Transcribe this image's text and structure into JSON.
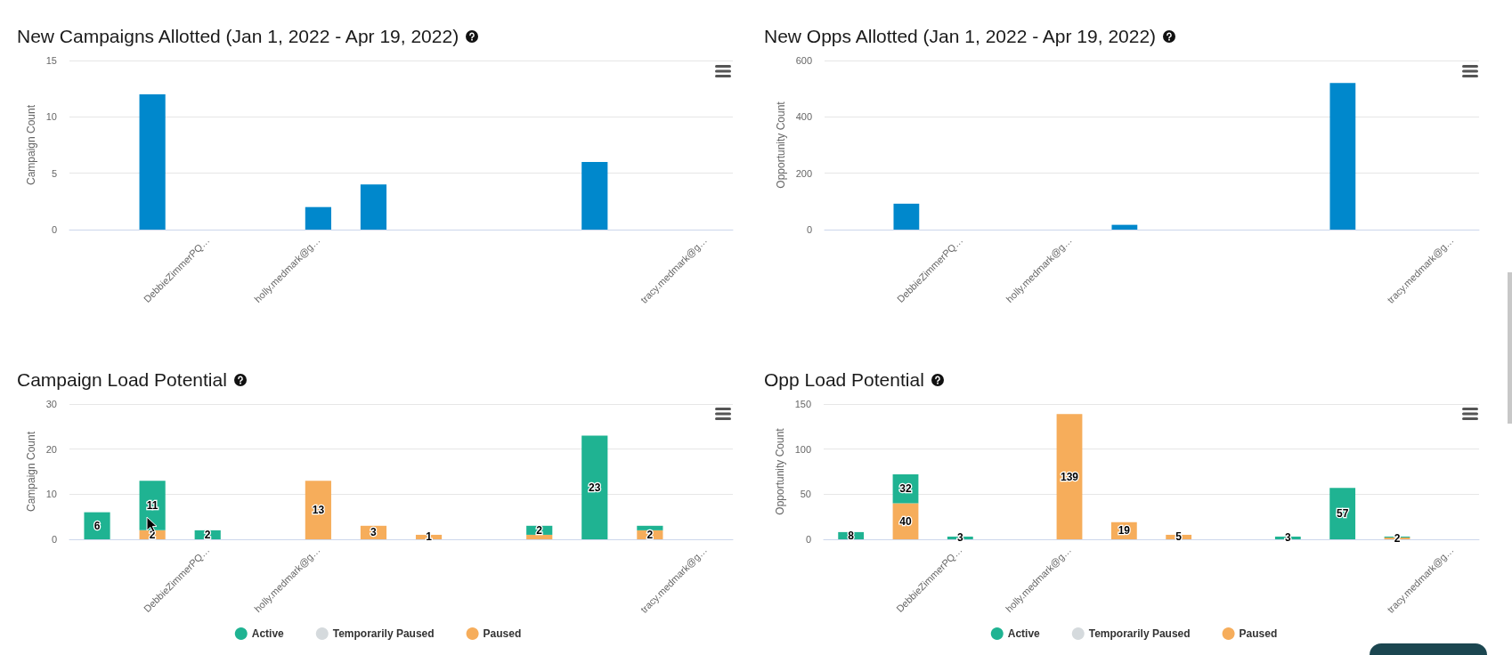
{
  "chart_data": [
    {
      "type": "bar",
      "title": "New Campaigns Allotted (Jan 1, 2022 - Apr 19, 2022)",
      "ylabel": "Campaign Count",
      "categories": [
        null,
        null,
        "DebbieZimmerPQ…",
        null,
        "holly.medmark@g…",
        null,
        null,
        null,
        null,
        null,
        null,
        "tracy.medmark@g…"
      ],
      "values": [
        0,
        12,
        0,
        0,
        2,
        4,
        0,
        0,
        0,
        6,
        0,
        0
      ],
      "color": "#0088cc",
      "ylim": [
        0,
        15
      ],
      "yticks": [
        0,
        5,
        10,
        15
      ],
      "grid": "y"
    },
    {
      "type": "bar",
      "title": "New Opps Allotted (Jan 1, 2022 - Apr 19, 2022)",
      "ylabel": "Opportunity Count",
      "categories": [
        null,
        null,
        "DebbieZimmerPQ…",
        null,
        "holly.medmark@g…",
        null,
        null,
        null,
        null,
        null,
        null,
        "tracy.medmark@g…"
      ],
      "values": [
        0,
        92,
        0,
        0,
        0,
        17,
        0,
        0,
        0,
        520,
        0,
        0
      ],
      "color": "#0088cc",
      "ylim": [
        0,
        600
      ],
      "yticks": [
        0,
        200,
        400,
        600
      ],
      "grid": "y"
    },
    {
      "type": "bar",
      "title": "Campaign Load Potential",
      "ylabel": "Campaign Count",
      "categories": [
        null,
        null,
        "DebbieZimmerPQ…",
        null,
        "holly.medmark@g…",
        null,
        null,
        null,
        null,
        null,
        null,
        "tracy.medmark@g…"
      ],
      "stacked": true,
      "series": [
        {
          "name": "Paused",
          "color": "#f6ad5b",
          "values": [
            0,
            2,
            0,
            0,
            13,
            3,
            1,
            0,
            1,
            0,
            2,
            0
          ],
          "value_labels": [
            null,
            "2",
            null,
            null,
            "13",
            "3",
            "1",
            null,
            null,
            null,
            "2",
            null
          ]
        },
        {
          "name": "Temporarily Paused",
          "color": "#d5dadd",
          "values": [
            0,
            0,
            0,
            0,
            0,
            0,
            0,
            0,
            0,
            0,
            0,
            0
          ]
        },
        {
          "name": "Active",
          "color": "#1fb392",
          "values": [
            6,
            11,
            2,
            0,
            0,
            0,
            0,
            0,
            2,
            23,
            1,
            0
          ],
          "value_labels": [
            "6",
            "11",
            "2",
            null,
            null,
            null,
            null,
            null,
            "2",
            "23",
            null,
            null
          ]
        }
      ],
      "ylim": [
        0,
        30
      ],
      "yticks": [
        0,
        10,
        20,
        30
      ],
      "grid": "y",
      "legend": "bottom"
    },
    {
      "type": "bar",
      "title": "Opp Load Potential",
      "ylabel": "Opportunity Count",
      "categories": [
        null,
        null,
        "DebbieZimmerPQ…",
        null,
        "holly.medmark@g…",
        null,
        null,
        null,
        null,
        null,
        null,
        "tracy.medmark@g…"
      ],
      "stacked": true,
      "series": [
        {
          "name": "Paused",
          "color": "#f6ad5b",
          "values": [
            0,
            40,
            0,
            0,
            139,
            19,
            5,
            0,
            0,
            0,
            2,
            0
          ],
          "value_labels": [
            null,
            "40",
            null,
            null,
            "139",
            "19",
            "5",
            null,
            null,
            null,
            "2",
            null
          ]
        },
        {
          "name": "Temporarily Paused",
          "color": "#d5dadd",
          "values": [
            0,
            0,
            0,
            0,
            0,
            0,
            0,
            0,
            0,
            0,
            0,
            0
          ]
        },
        {
          "name": "Active",
          "color": "#1fb392",
          "values": [
            8,
            32,
            3,
            0,
            0,
            0,
            0,
            0,
            3,
            57,
            1,
            0
          ],
          "value_labels": [
            "8",
            "32",
            "3",
            null,
            null,
            null,
            null,
            null,
            "3",
            "57",
            null,
            null
          ]
        }
      ],
      "ylim": [
        0,
        150
      ],
      "yticks": [
        0,
        50,
        100,
        150
      ],
      "grid": "y",
      "legend": "bottom"
    }
  ]
}
